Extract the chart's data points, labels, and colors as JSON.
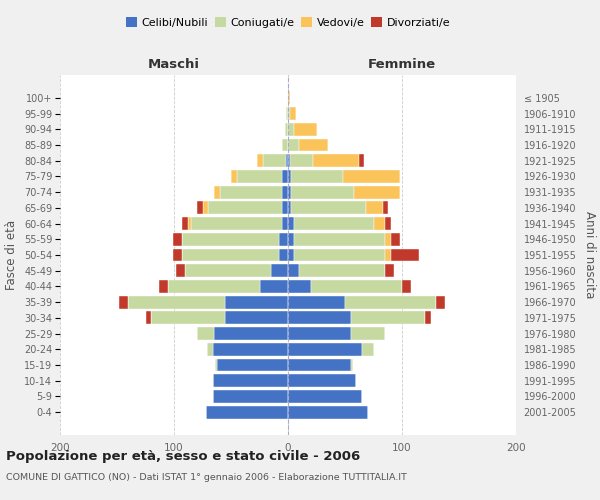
{
  "age_groups": [
    "0-4",
    "5-9",
    "10-14",
    "15-19",
    "20-24",
    "25-29",
    "30-34",
    "35-39",
    "40-44",
    "45-49",
    "50-54",
    "55-59",
    "60-64",
    "65-69",
    "70-74",
    "75-79",
    "80-84",
    "85-89",
    "90-94",
    "95-99",
    "100+"
  ],
  "birth_years": [
    "2001-2005",
    "1996-2000",
    "1991-1995",
    "1986-1990",
    "1981-1985",
    "1976-1980",
    "1971-1975",
    "1966-1970",
    "1961-1965",
    "1956-1960",
    "1951-1955",
    "1946-1950",
    "1941-1945",
    "1936-1940",
    "1931-1935",
    "1926-1930",
    "1921-1925",
    "1916-1920",
    "1911-1915",
    "1906-1910",
    "≤ 1905"
  ],
  "male_celibi": [
    72,
    66,
    66,
    62,
    66,
    65,
    55,
    55,
    25,
    15,
    8,
    8,
    5,
    5,
    5,
    5,
    2,
    0,
    0,
    0,
    0
  ],
  "male_coniugati": [
    0,
    0,
    0,
    2,
    5,
    15,
    65,
    85,
    80,
    75,
    85,
    85,
    80,
    65,
    55,
    40,
    20,
    5,
    3,
    2,
    0
  ],
  "male_vedovi": [
    0,
    0,
    0,
    0,
    0,
    0,
    0,
    0,
    0,
    0,
    0,
    0,
    3,
    5,
    5,
    5,
    5,
    0,
    0,
    0,
    0
  ],
  "male_divorziati": [
    0,
    0,
    0,
    0,
    0,
    0,
    5,
    8,
    8,
    8,
    8,
    8,
    5,
    5,
    0,
    0,
    0,
    0,
    0,
    0,
    0
  ],
  "female_celibi": [
    70,
    65,
    60,
    55,
    65,
    55,
    55,
    50,
    20,
    10,
    5,
    5,
    5,
    3,
    3,
    3,
    2,
    0,
    0,
    0,
    0
  ],
  "female_coniugati": [
    0,
    0,
    0,
    2,
    10,
    30,
    65,
    80,
    80,
    75,
    80,
    80,
    70,
    65,
    55,
    45,
    20,
    10,
    5,
    2,
    0
  ],
  "female_vedovi": [
    0,
    0,
    0,
    0,
    0,
    0,
    0,
    0,
    0,
    0,
    5,
    5,
    10,
    15,
    40,
    50,
    40,
    25,
    20,
    5,
    2
  ],
  "female_divorziati": [
    0,
    0,
    0,
    0,
    0,
    0,
    5,
    8,
    8,
    8,
    25,
    8,
    5,
    5,
    0,
    0,
    5,
    0,
    0,
    0,
    0
  ],
  "color_celibi": "#4472c4",
  "color_coniugati": "#c5d9a0",
  "color_vedovi": "#fac45a",
  "color_divorziati": "#c0392b",
  "title": "Popolazione per età, sesso e stato civile - 2006",
  "subtitle": "COMUNE DI GATTICO (NO) - Dati ISTAT 1° gennaio 2006 - Elaborazione TUTTITALIA.IT",
  "xlabel_left": "Maschi",
  "xlabel_right": "Femmine",
  "ylabel_left": "Fasce di età",
  "ylabel_right": "Anni di nascita",
  "xlim": 200,
  "background_color": "#f0f0f0",
  "plot_background": "#ffffff"
}
